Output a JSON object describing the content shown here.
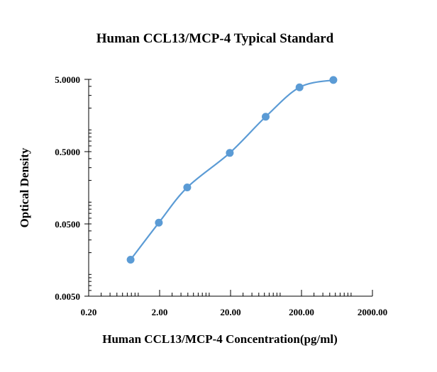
{
  "chart_data": {
    "type": "scatter",
    "title": "Human CCL13/MCP-4  Typical Standard",
    "xlabel": "Human CCL13/MCP-4   Concentration(pg/ml)",
    "ylabel": "Optical Density",
    "x_scale": "log",
    "y_scale": "log",
    "xlim": [
      0.2,
      2000
    ],
    "ylim": [
      0.005,
      5
    ],
    "x_ticks": [
      0.2,
      2,
      20,
      200,
      2000
    ],
    "x_tick_labels": [
      "0.20",
      "2.00",
      "20.00",
      "200.00",
      "2000.00"
    ],
    "y_ticks": [
      0.005,
      0.05,
      0.5,
      5
    ],
    "y_tick_labels": [
      "0.0050",
      "0.0500",
      "0.5000",
      "5.0000"
    ],
    "grid": false,
    "legend": "none",
    "smooth_line": true,
    "series": [
      {
        "color": "#5b9bd5",
        "points": [
          {
            "x": 0.78,
            "y": 0.016
          },
          {
            "x": 1.95,
            "y": 0.052
          },
          {
            "x": 4.9,
            "y": 0.16
          },
          {
            "x": 19.5,
            "y": 0.48
          },
          {
            "x": 62.5,
            "y": 1.52
          },
          {
            "x": 187.5,
            "y": 3.88
          },
          {
            "x": 562.5,
            "y": 4.9
          }
        ]
      }
    ]
  }
}
